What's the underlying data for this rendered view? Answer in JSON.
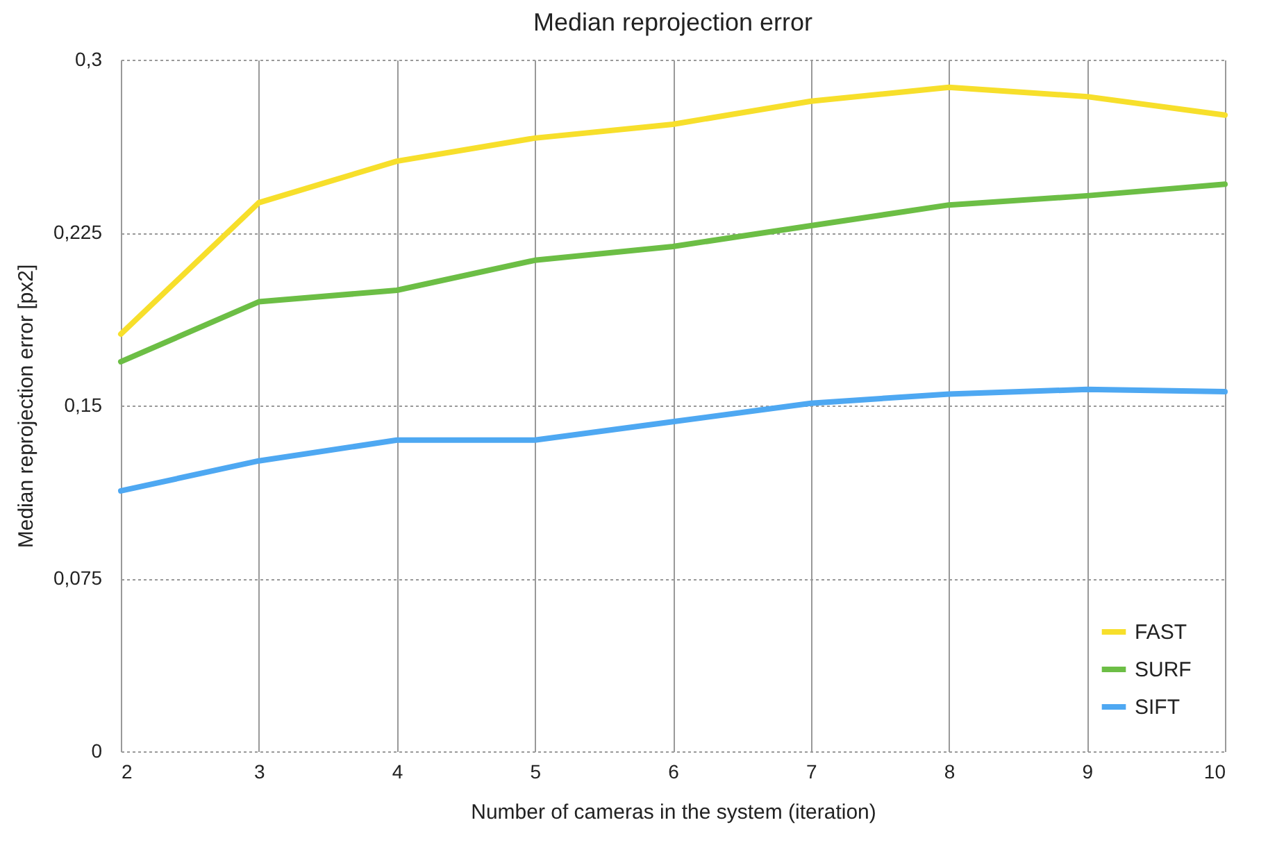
{
  "chart_data": {
    "type": "line",
    "title": "Median reprojection error",
    "xlabel": "Number of cameras in the system (iteration)",
    "ylabel": "Median reprojection error [px2]",
    "x": [
      2,
      3,
      4,
      5,
      6,
      7,
      8,
      9,
      10
    ],
    "series": [
      {
        "name": "FAST",
        "color": "#f7df2b",
        "values": [
          0.181,
          0.238,
          0.256,
          0.266,
          0.272,
          0.282,
          0.288,
          0.284,
          0.276
        ]
      },
      {
        "name": "SURF",
        "color": "#6cbe45",
        "values": [
          0.169,
          0.195,
          0.2,
          0.213,
          0.219,
          0.228,
          0.237,
          0.241,
          0.246
        ]
      },
      {
        "name": "SIFT",
        "color": "#4ea8f2",
        "values": [
          0.113,
          0.126,
          0.135,
          0.135,
          0.143,
          0.151,
          0.155,
          0.157,
          0.156
        ]
      }
    ],
    "xlim": [
      2,
      10
    ],
    "xticks": [
      2,
      3,
      4,
      5,
      6,
      7,
      8,
      9,
      10
    ],
    "ylim": [
      0,
      0.3
    ],
    "yticks": [
      0,
      {
        "value": 0.075,
        "label": "0,075"
      },
      {
        "value": 0.15,
        "label": "0,15"
      },
      {
        "value": 0.225,
        "label": "0,225"
      },
      {
        "value": 0.3,
        "label": "0,3"
      }
    ],
    "grid": true,
    "legend": "bottom right",
    "marker": "none",
    "line_style": "solid"
  }
}
